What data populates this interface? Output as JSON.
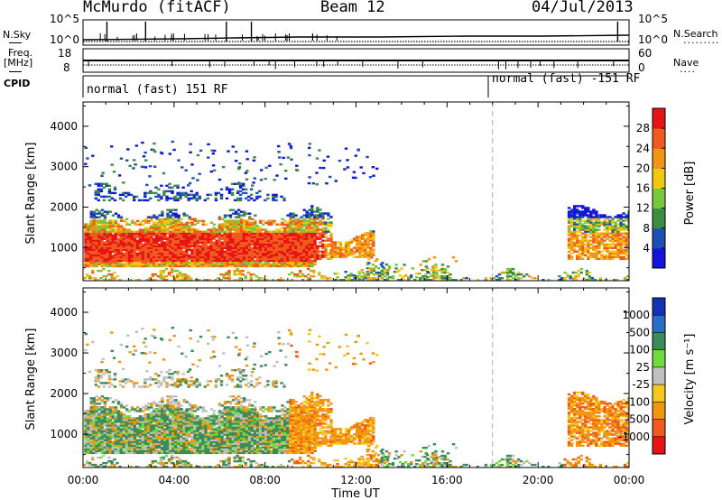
{
  "header": {
    "station": "McMurdo (fitACF)",
    "beam": "Beam 12",
    "date": "04/Jul/2013"
  },
  "top_panels": {
    "nsky_label": "N.Sky",
    "nsearch_label": "N.Search",
    "nsearch_dots": "·········",
    "nsky_ticks": [
      "10^5",
      "10^0"
    ],
    "nsearch_ticks": [
      "10^5",
      "10^0"
    ],
    "freq_label_1": "Freq.",
    "freq_label_2": "[MHz]",
    "freq_ticks": [
      "18",
      "8"
    ],
    "nave_label": "Nave",
    "nave_dots": "····",
    "nave_ticks": [
      "60",
      "0"
    ],
    "cpid_label": "CPID",
    "cpid_segments": [
      "normal (fast) 151 RF",
      "normal (fast) -151 RF"
    ]
  },
  "colors": {
    "power": [
      "#1414dc",
      "#1e50b4",
      "#3c8c46",
      "#78c83c",
      "#f0c814",
      "#f09614",
      "#f05a1e",
      "#e61414"
    ],
    "velocity": [
      "#e61414",
      "#f05a1e",
      "#f0960f",
      "#f5c81e",
      "#c0c0c0",
      "#6edc3c",
      "#3c8c5a",
      "#286ec8",
      "#1432b4"
    ]
  },
  "chart_data": [
    {
      "type": "heatmap",
      "title": "",
      "xlabel": "",
      "ylabel": "Slant Range [km]",
      "xlim": [
        0,
        24
      ],
      "ylim": [
        180,
        4600
      ],
      "x_ticks": [
        "00:00",
        "04:00",
        "08:00",
        "12:00",
        "16:00",
        "20:00",
        "00:00"
      ],
      "y_ticks": [
        "1000",
        "2000",
        "3000",
        "4000"
      ],
      "colorbar_label": "Power [dB]",
      "colorbar_ticks": [
        "4",
        "8",
        "12",
        "16",
        "20",
        "24",
        "28"
      ],
      "colorbar_range": [
        0,
        32
      ],
      "cpid_boundary_hour": 18
    },
    {
      "type": "heatmap",
      "title": "",
      "xlabel": "Time UT",
      "ylabel": "Slant Range [km]",
      "xlim": [
        0,
        24
      ],
      "ylim": [
        180,
        4600
      ],
      "x_ticks": [
        "00:00",
        "04:00",
        "08:00",
        "12:00",
        "16:00",
        "20:00",
        "00:00"
      ],
      "y_ticks": [
        "1000",
        "2000",
        "3000",
        "4000"
      ],
      "colorbar_label": "Velocity [m s⁻¹]",
      "colorbar_ticks": [
        "1000",
        "500",
        "100",
        "25",
        "-25",
        "-100",
        "-500",
        "-1000"
      ],
      "cpid_boundary_hour": 18
    }
  ]
}
